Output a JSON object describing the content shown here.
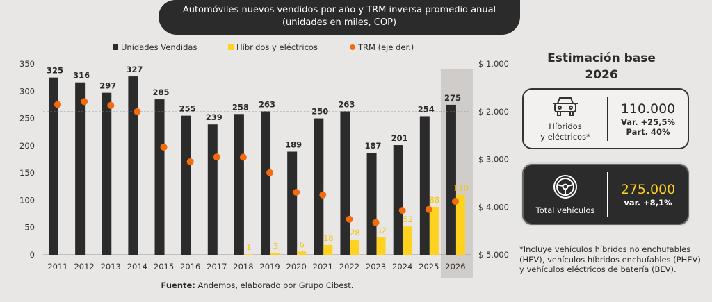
{
  "header": {
    "title_line1": "Automóviles nuevos vendidos por año y TRM inversa promedio anual",
    "title_line2": "(unidades en miles, COP)"
  },
  "chart_data": {
    "type": "bar",
    "categories": [
      "2011",
      "2012",
      "2013",
      "2014",
      "2015",
      "2016",
      "2017",
      "2018",
      "2019",
      "2020",
      "2021",
      "2022",
      "2023",
      "2024",
      "2025",
      "2026"
    ],
    "series": [
      {
        "name": "Unidades Vendidas",
        "type": "bar",
        "color": "#2b2b2b",
        "values": [
          325,
          316,
          297,
          327,
          285,
          255,
          239,
          258,
          263,
          189,
          250,
          263,
          187,
          201,
          254,
          275
        ]
      },
      {
        "name": "Híbridos y eléctricos",
        "type": "bar",
        "color": "#ffd21f",
        "values": [
          null,
          null,
          null,
          null,
          null,
          null,
          null,
          1,
          3,
          6,
          18,
          28,
          32,
          52,
          88,
          110
        ]
      },
      {
        "name": "TRM (eje der.)",
        "type": "scatter",
        "axis": "right",
        "color": "#f26b0f",
        "values": [
          1850,
          1790,
          1870,
          2000,
          2745,
          3050,
          2950,
          2955,
          3280,
          3690,
          3745,
          4255,
          4325,
          4070,
          4050,
          3880
        ]
      }
    ],
    "left_axis": {
      "ylim": [
        0,
        350
      ],
      "ticks": [
        "0",
        "50",
        "100",
        "150",
        "200",
        "250",
        "300",
        "350"
      ]
    },
    "right_axis": {
      "ylim": [
        1000,
        5000
      ],
      "inverted": true,
      "ticks": [
        "$ 1,000",
        "$ 2,000",
        "$ 3,000",
        "$ 4,000",
        "$ 5,000"
      ]
    },
    "reference_line": {
      "value": 262,
      "style": "dashed"
    },
    "highlight_category": "2026",
    "legend_placement": "top"
  },
  "source": {
    "label": "Fuente:",
    "text": " Andemos, elaborado por Grupo Cibest."
  },
  "estimate": {
    "title_line1": "Estimación base",
    "title_line2": "2026",
    "hybrids": {
      "icon": "car-icon",
      "label_line1": "Híbridos",
      "label_line2": "y eléctricos*",
      "value": "110.000",
      "var": "Var. +25,5%",
      "part": "Part. 40%"
    },
    "total": {
      "icon": "steering-wheel-icon",
      "label": "Total vehículos",
      "value": "275.000",
      "var": "var. +8,1%",
      "value_color": "#ffd21f"
    }
  },
  "footnote": "*Incluye vehículos híbridos no enchufables (HEV), vehículos híbridos enchufables (PHEV) y vehículos eléctricos de batería (BEV)."
}
